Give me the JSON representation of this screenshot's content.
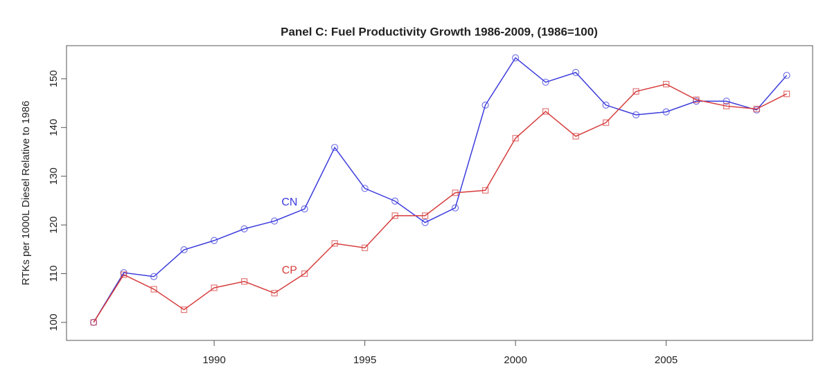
{
  "chart_data": {
    "type": "line",
    "title": "Panel C: Fuel Productivity Growth 1986-2009, (1986=100)",
    "y_label": "RTKs per 1000L Diesel Relative to 1986",
    "x": [
      1986,
      1987,
      1988,
      1989,
      1990,
      1991,
      1992,
      1993,
      1994,
      1995,
      1996,
      1997,
      1998,
      1999,
      2000,
      2001,
      2002,
      2003,
      2004,
      2005,
      2006,
      2007,
      2008,
      2009
    ],
    "series": [
      {
        "name": "CN",
        "color": "#3b3bdc",
        "marker": "circle",
        "values": [
          100,
          110.2,
          109.4,
          114.9,
          116.8,
          119.2,
          120.8,
          123.3,
          135.9,
          127.5,
          124.9,
          120.5,
          123.5,
          144.6,
          154.3,
          149.3,
          151.3,
          144.6,
          142.6,
          143.2,
          145.4,
          145.4,
          143.6,
          150.7
        ]
      },
      {
        "name": "CP",
        "color": "#d63c3c",
        "marker": "square",
        "values": [
          100,
          109.8,
          106.8,
          102.6,
          107.1,
          108.4,
          106.0,
          110.0,
          116.2,
          115.3,
          121.9,
          121.9,
          126.6,
          127.1,
          137.8,
          143.3,
          138.2,
          141.0,
          147.4,
          148.9,
          145.7,
          144.4,
          143.8,
          146.9
        ]
      }
    ],
    "annotations": [
      {
        "text": "CN",
        "x": 1992.5,
        "y": 124.6,
        "color": "#3b3bdc"
      },
      {
        "text": "CP",
        "x": 1992.5,
        "y": 110.6,
        "color": "#d63c3c"
      }
    ],
    "xlim": [
      1985.1,
      2009.86
    ],
    "xticks": [
      1990,
      1995,
      2000,
      2005
    ],
    "ylim": [
      96.3,
      156.8
    ],
    "yticks": [
      100,
      110,
      120,
      130,
      140,
      150
    ]
  }
}
